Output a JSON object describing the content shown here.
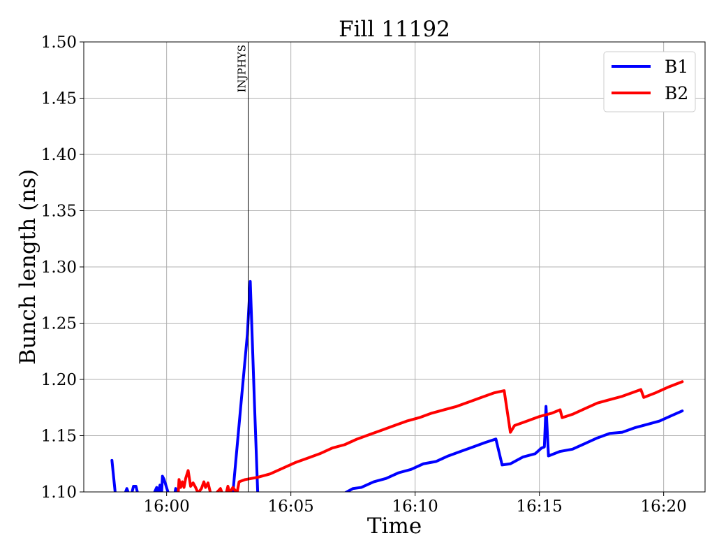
{
  "chart_data": {
    "type": "line",
    "title": "Fill 11192",
    "xlabel": "Time",
    "ylabel": "Bunch length (ns)",
    "xlim": [
      "15:56:40",
      "16:21:40"
    ],
    "ylim": [
      1.1,
      1.5
    ],
    "grid": true,
    "legend_position": "top-right",
    "x_ticks": [
      "16:00",
      "16:05",
      "16:10",
      "16:15",
      "16:20"
    ],
    "y_ticks": [
      "1.10",
      "1.15",
      "1.20",
      "1.25",
      "1.30",
      "1.35",
      "1.40",
      "1.45",
      "1.50"
    ],
    "annotations": [
      {
        "label": "INJPHYS",
        "x": "16:03:17"
      }
    ],
    "series": [
      {
        "name": "B1",
        "color": "#0000ff",
        "points": [
          [
            "15:57:48",
            1.128
          ],
          [
            "15:57:56",
            1.099
          ],
          [
            "15:58:20",
            1.099
          ],
          [
            "15:58:24",
            1.103
          ],
          [
            "15:58:28",
            1.099
          ],
          [
            "15:58:36",
            1.099
          ],
          [
            "15:58:40",
            1.105
          ],
          [
            "15:58:46",
            1.105
          ],
          [
            "15:58:50",
            1.099
          ],
          [
            "15:59:30",
            1.099
          ],
          [
            "15:59:36",
            1.104
          ],
          [
            "15:59:40",
            1.099
          ],
          [
            "15:59:44",
            1.106
          ],
          [
            "15:59:48",
            1.099
          ],
          [
            "15:59:50",
            1.114
          ],
          [
            "15:59:54",
            1.111
          ],
          [
            "16:00:04",
            1.099
          ],
          [
            "16:00:20",
            1.099
          ],
          [
            "16:00:22",
            1.103
          ],
          [
            "16:00:26",
            1.099
          ],
          [
            "16:02:40",
            1.099
          ],
          [
            "16:03:00",
            1.18
          ],
          [
            "16:03:15",
            1.24
          ],
          [
            "16:03:22",
            1.287
          ],
          [
            "16:03:32",
            1.18
          ],
          [
            "16:03:40",
            1.099
          ],
          [
            "16:07:10",
            1.099
          ],
          [
            "16:07:30",
            1.103
          ],
          [
            "16:07:50",
            1.104
          ],
          [
            "16:08:20",
            1.109
          ],
          [
            "16:08:50",
            1.112
          ],
          [
            "16:09:20",
            1.117
          ],
          [
            "16:09:50",
            1.12
          ],
          [
            "16:10:20",
            1.125
          ],
          [
            "16:10:50",
            1.127
          ],
          [
            "16:11:20",
            1.132
          ],
          [
            "16:11:50",
            1.136
          ],
          [
            "16:12:20",
            1.14
          ],
          [
            "16:12:50",
            1.144
          ],
          [
            "16:13:15",
            1.147
          ],
          [
            "16:13:30",
            1.124
          ],
          [
            "16:13:50",
            1.125
          ],
          [
            "16:14:20",
            1.131
          ],
          [
            "16:14:50",
            1.134
          ],
          [
            "16:15:05",
            1.139
          ],
          [
            "16:15:12",
            1.14
          ],
          [
            "16:15:16",
            1.176
          ],
          [
            "16:15:22",
            1.132
          ],
          [
            "16:15:50",
            1.136
          ],
          [
            "16:16:20",
            1.138
          ],
          [
            "16:16:50",
            1.143
          ],
          [
            "16:17:20",
            1.148
          ],
          [
            "16:17:50",
            1.152
          ],
          [
            "16:18:20",
            1.153
          ],
          [
            "16:18:50",
            1.157
          ],
          [
            "16:19:20",
            1.16
          ],
          [
            "16:19:50",
            1.163
          ],
          [
            "16:20:20",
            1.168
          ],
          [
            "16:20:45",
            1.172
          ]
        ]
      },
      {
        "name": "B2",
        "color": "#ff0000",
        "points": [
          [
            "16:00:28",
            1.099
          ],
          [
            "16:00:30",
            1.111
          ],
          [
            "16:00:34",
            1.104
          ],
          [
            "16:00:38",
            1.109
          ],
          [
            "16:00:42",
            1.104
          ],
          [
            "16:00:46",
            1.112
          ],
          [
            "16:00:52",
            1.119
          ],
          [
            "16:00:58",
            1.105
          ],
          [
            "16:01:04",
            1.108
          ],
          [
            "16:01:10",
            1.104
          ],
          [
            "16:01:16",
            1.099
          ],
          [
            "16:01:24",
            1.103
          ],
          [
            "16:01:30",
            1.109
          ],
          [
            "16:01:34",
            1.104
          ],
          [
            "16:01:40",
            1.108
          ],
          [
            "16:01:46",
            1.099
          ],
          [
            "16:02:00",
            1.099
          ],
          [
            "16:02:10",
            1.103
          ],
          [
            "16:02:14",
            1.099
          ],
          [
            "16:02:24",
            1.099
          ],
          [
            "16:02:28",
            1.105
          ],
          [
            "16:02:32",
            1.099
          ],
          [
            "16:02:40",
            1.104
          ],
          [
            "16:02:50",
            1.099
          ],
          [
            "16:02:55",
            1.109
          ],
          [
            "16:03:10",
            1.111
          ],
          [
            "16:03:40",
            1.113
          ],
          [
            "16:04:10",
            1.116
          ],
          [
            "16:04:40",
            1.121
          ],
          [
            "16:05:10",
            1.126
          ],
          [
            "16:05:40",
            1.13
          ],
          [
            "16:06:10",
            1.134
          ],
          [
            "16:06:40",
            1.139
          ],
          [
            "16:07:10",
            1.142
          ],
          [
            "16:07:40",
            1.147
          ],
          [
            "16:08:10",
            1.151
          ],
          [
            "16:08:40",
            1.155
          ],
          [
            "16:09:10",
            1.159
          ],
          [
            "16:09:40",
            1.163
          ],
          [
            "16:10:10",
            1.166
          ],
          [
            "16:10:40",
            1.17
          ],
          [
            "16:11:10",
            1.173
          ],
          [
            "16:11:40",
            1.176
          ],
          [
            "16:12:10",
            1.18
          ],
          [
            "16:12:40",
            1.184
          ],
          [
            "16:13:10",
            1.188
          ],
          [
            "16:13:35",
            1.19
          ],
          [
            "16:13:50",
            1.153
          ],
          [
            "16:14:00",
            1.159
          ],
          [
            "16:14:30",
            1.163
          ],
          [
            "16:15:00",
            1.167
          ],
          [
            "16:15:30",
            1.17
          ],
          [
            "16:15:50",
            1.173
          ],
          [
            "16:15:55",
            1.166
          ],
          [
            "16:16:20",
            1.169
          ],
          [
            "16:16:50",
            1.174
          ],
          [
            "16:17:20",
            1.179
          ],
          [
            "16:17:50",
            1.182
          ],
          [
            "16:18:20",
            1.185
          ],
          [
            "16:18:50",
            1.189
          ],
          [
            "16:19:05",
            1.191
          ],
          [
            "16:19:12",
            1.184
          ],
          [
            "16:19:40",
            1.188
          ],
          [
            "16:20:10",
            1.193
          ],
          [
            "16:20:45",
            1.198
          ]
        ]
      }
    ]
  }
}
